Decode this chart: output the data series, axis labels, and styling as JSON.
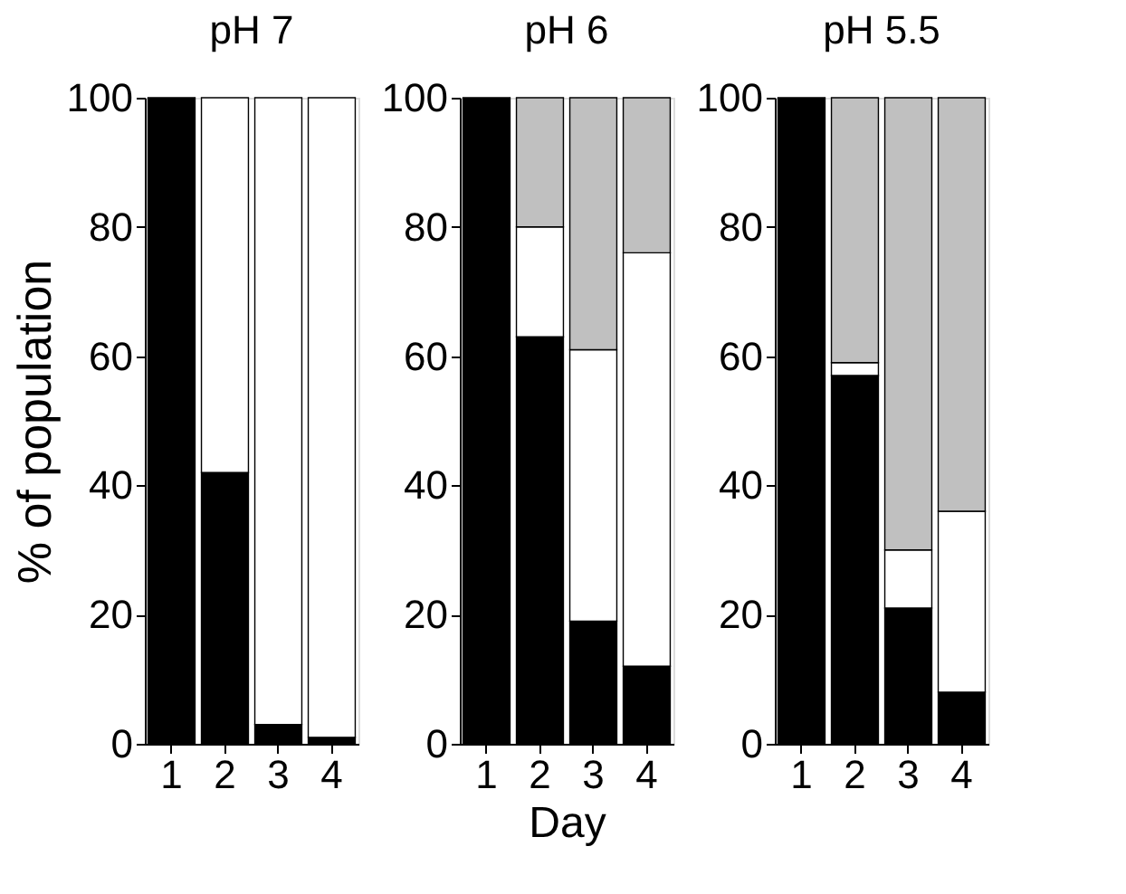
{
  "chart_data": [
    {
      "type": "bar",
      "title": "pH 7",
      "ylabel": "% of population",
      "categories": [
        "1",
        "2",
        "3",
        "4"
      ],
      "stacked": true,
      "ylim": [
        0,
        100
      ],
      "yticks": [
        0,
        20,
        40,
        60,
        80,
        100
      ],
      "grid": false,
      "series": [
        {
          "color": "#000000",
          "values": [
            100,
            42,
            3,
            1
          ]
        },
        {
          "color": "#ffffff",
          "values": [
            null,
            58,
            97,
            99
          ]
        }
      ]
    },
    {
      "type": "bar",
      "title": "pH 6",
      "xlabel": "Day",
      "categories": [
        "1",
        "2",
        "3",
        "4"
      ],
      "stacked": true,
      "ylim": [
        0,
        100
      ],
      "yticks": [
        0,
        20,
        40,
        60,
        80,
        100
      ],
      "grid": false,
      "series": [
        {
          "color": "#000000",
          "values": [
            100,
            63,
            19,
            12
          ]
        },
        {
          "color": "#ffffff",
          "values": [
            null,
            17,
            42,
            64
          ]
        },
        {
          "color": "#c0c0c0",
          "values": [
            null,
            20,
            39,
            24
          ]
        }
      ]
    },
    {
      "type": "bar",
      "title": "pH 5.5",
      "categories": [
        "1",
        "2",
        "3",
        "4"
      ],
      "stacked": true,
      "ylim": [
        0,
        100
      ],
      "yticks": [
        0,
        20,
        40,
        60,
        80,
        100
      ],
      "grid": false,
      "series": [
        {
          "color": "#000000",
          "values": [
            100,
            57,
            21,
            8
          ]
        },
        {
          "color": "#ffffff",
          "values": [
            null,
            2,
            9,
            28
          ]
        },
        {
          "color": "#c0c0c0",
          "values": [
            null,
            41,
            70,
            64
          ]
        }
      ]
    }
  ]
}
